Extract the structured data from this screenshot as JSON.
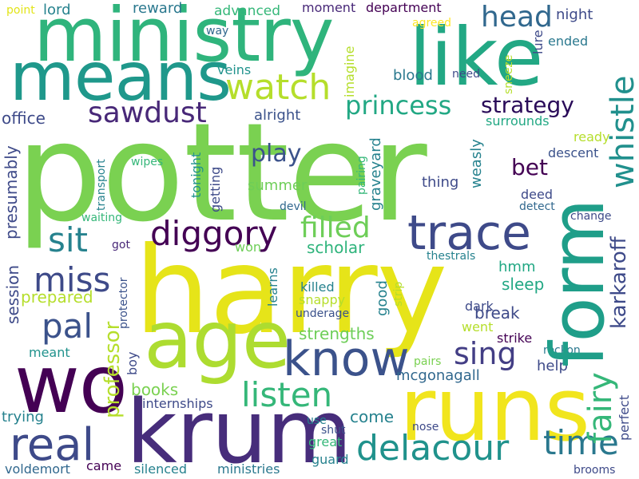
{
  "words": [
    "potter",
    "harry",
    "ministry",
    "like",
    "means",
    "form",
    "age",
    "krum",
    "runs",
    "wo",
    "know",
    "trace",
    "real",
    "delacour",
    "watch",
    "time",
    "head",
    "whistle",
    "princess",
    "diggory",
    "sawdust",
    "listen",
    "karkaroff",
    "sit",
    "miss",
    "filled",
    "fairy",
    "pal",
    "sing",
    "strategy",
    "play",
    "bet",
    "professor",
    "books",
    "come",
    "office",
    "night",
    "department",
    "lord",
    "reward",
    "advanced",
    "moment",
    "lure",
    "ended",
    "point",
    "veins",
    "blood",
    "need",
    "sneeze",
    "agreed",
    "way",
    "imagine",
    "alright",
    "surrounds",
    "ready",
    "descent",
    "presumably",
    "transport",
    "wipes",
    "tonight",
    "getting",
    "graveyard",
    "pairing",
    "weasly",
    "thing",
    "summer",
    "devil",
    "deed",
    "detect",
    "change",
    "waiting",
    "got",
    "won",
    "scholar",
    "thestrals",
    "hmm",
    "sleep",
    "session",
    "prepared",
    "protector",
    "learns",
    "killed",
    "snappy",
    "strip",
    "good",
    "underage",
    "dark",
    "break",
    "went",
    "strengths",
    "strike",
    "reckon",
    "meant",
    "boy",
    "mcgonagall",
    "help",
    "pairs",
    "trying",
    "internships",
    "use",
    "shut",
    "nose",
    "perfect",
    "great",
    "voldemort",
    "came",
    "silenced",
    "ministries",
    "guard",
    "brooms"
  ],
  "palette": {
    "background": "#ffffff",
    "dark_purple": "#440154",
    "purple": "#482878",
    "indigo": "#3e4a89",
    "blue": "#31688e",
    "teal_blue": "#26828e",
    "teal": "#1f9e89",
    "green": "#35b779",
    "light_green": "#6ece58",
    "lime": "#b5de2b",
    "yellow": "#fde725"
  }
}
